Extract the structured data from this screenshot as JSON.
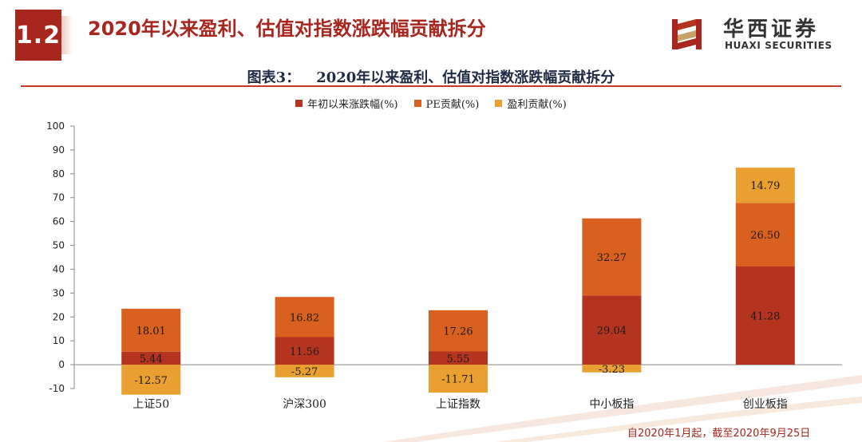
{
  "header": {
    "section_number": "1.2",
    "title": "2020年以来盈利、估值对指数涨跌幅贡献拆分"
  },
  "logo": {
    "name_cn": "华西证券",
    "name_en": "HUAXI SECURITIES"
  },
  "figure": {
    "label": "图表3：",
    "title": "2020年以来盈利、估值对指数涨跌幅贡献拆分"
  },
  "colors": {
    "brand": "#a7261d",
    "series_total": "#b5341f",
    "series_pe": "#d9601f",
    "series_profit": "#e9a030"
  },
  "chart_data": {
    "type": "bar",
    "stacked": true,
    "categories": [
      "上证50",
      "沪深300",
      "上证指数",
      "中小板指",
      "创业板指"
    ],
    "series": [
      {
        "name": "年初以来涨跌幅(%)",
        "values": [
          5.44,
          11.56,
          5.55,
          29.04,
          41.28
        ]
      },
      {
        "name": "PE贡献(%)",
        "values": [
          18.01,
          16.82,
          17.26,
          32.27,
          26.5
        ]
      },
      {
        "name": "盈利贡献(%)",
        "values": [
          -12.57,
          -5.27,
          -11.71,
          -3.23,
          14.79
        ]
      }
    ],
    "value_labels": [
      [
        "5.44",
        "11.56",
        "5.55",
        "29.04",
        "41.28"
      ],
      [
        "18.01",
        "16.82",
        "17.26",
        "32.27",
        "26.50"
      ],
      [
        "-12.57",
        "-5.27",
        "-11.71",
        "-3.23",
        "14.79"
      ]
    ],
    "ylim": [
      -10,
      100
    ],
    "yticks": [
      -10,
      0,
      10,
      20,
      30,
      40,
      50,
      60,
      70,
      80,
      90,
      100
    ],
    "grid": false,
    "legend_position": "top"
  },
  "footnote": "自2020年1月起，截至2020年9月25日"
}
